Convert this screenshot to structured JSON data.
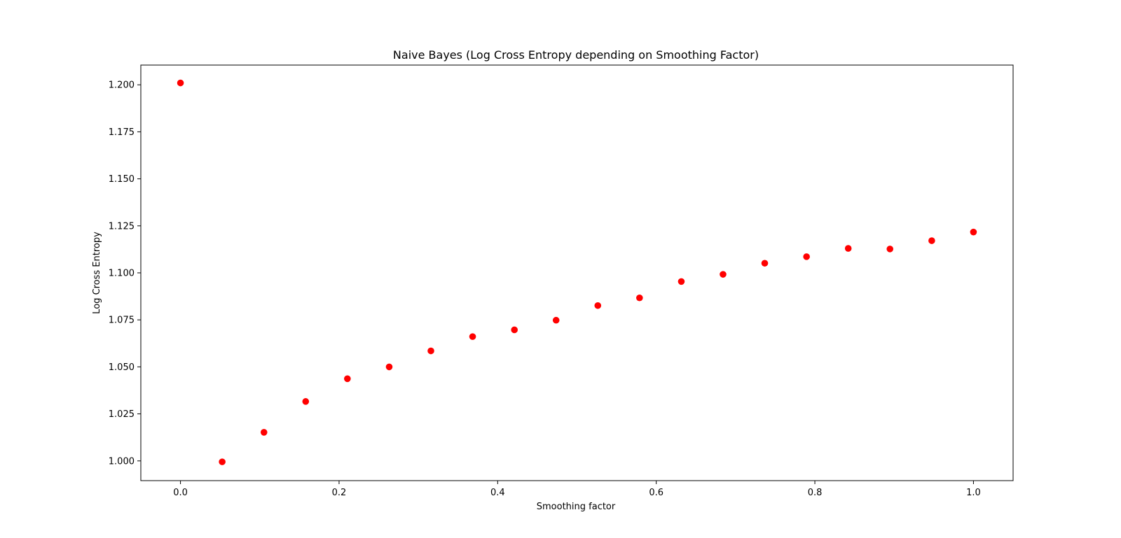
{
  "chart_data": {
    "type": "scatter",
    "title": "Naive Bayes (Log Cross Entropy depending on Smoothing Factor)",
    "xlabel": "Smoothing factor",
    "ylabel": "Log Cross Entropy",
    "xlim": [
      -0.05,
      1.05
    ],
    "ylim": [
      0.9895,
      1.2105
    ],
    "xticks": [
      0.0,
      0.2,
      0.4,
      0.6,
      0.8,
      1.0
    ],
    "xtick_labels": [
      "0.0",
      "0.2",
      "0.4",
      "0.6",
      "0.8",
      "1.0"
    ],
    "yticks": [
      1.0,
      1.025,
      1.05,
      1.075,
      1.1,
      1.125,
      1.15,
      1.175,
      1.2
    ],
    "ytick_labels": [
      "1.000",
      "1.025",
      "1.050",
      "1.075",
      "1.100",
      "1.125",
      "1.150",
      "1.175",
      "1.200"
    ],
    "grid": false,
    "marker_color": "#ff0000",
    "series": [
      {
        "x": [
          0.0,
          0.0526,
          0.1053,
          0.1579,
          0.2105,
          0.2632,
          0.3158,
          0.3684,
          0.4211,
          0.4737,
          0.5263,
          0.5789,
          0.6316,
          0.6842,
          0.7368,
          0.7895,
          0.8421,
          0.8947,
          0.9474,
          1.0
        ],
        "y": [
          1.201,
          0.9995,
          1.0152,
          1.0316,
          1.0437,
          1.05,
          1.0585,
          1.0661,
          1.0697,
          1.0748,
          1.0826,
          1.0867,
          1.0954,
          1.0992,
          1.1051,
          1.1086,
          1.113,
          1.1127,
          1.1171,
          1.1217
        ]
      }
    ]
  }
}
